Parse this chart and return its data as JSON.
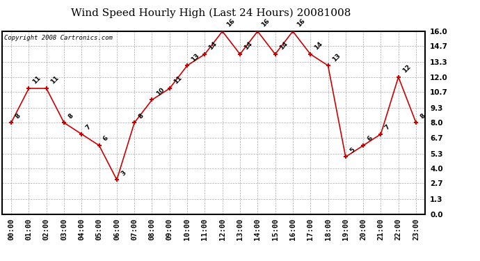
{
  "title": "Wind Speed Hourly High (Last 24 Hours) 20081008",
  "copyright": "Copyright 2008 Cartronics.com",
  "hours": [
    "00:00",
    "01:00",
    "02:00",
    "03:00",
    "04:00",
    "05:00",
    "06:00",
    "07:00",
    "08:00",
    "09:00",
    "10:00",
    "11:00",
    "12:00",
    "13:00",
    "14:00",
    "15:00",
    "16:00",
    "17:00",
    "18:00",
    "19:00",
    "20:00",
    "21:00",
    "22:00",
    "23:00"
  ],
  "values": [
    8,
    11,
    11,
    8,
    7,
    6,
    3,
    8,
    10,
    11,
    13,
    14,
    16,
    14,
    16,
    14,
    16,
    14,
    13,
    5,
    6,
    7,
    12,
    8
  ],
  "line_color": "#cc0000",
  "marker_color": "#cc0000",
  "bg_color": "#ffffff",
  "grid_color": "#aaaaaa",
  "yticks": [
    0.0,
    1.3,
    2.7,
    4.0,
    5.3,
    6.7,
    8.0,
    9.3,
    10.7,
    12.0,
    13.3,
    14.7,
    16.0
  ],
  "ylim": [
    0.0,
    16.0
  ],
  "title_fontsize": 11,
  "copyright_fontsize": 6.5,
  "label_fontsize": 6.5,
  "tick_fontsize": 7.5
}
